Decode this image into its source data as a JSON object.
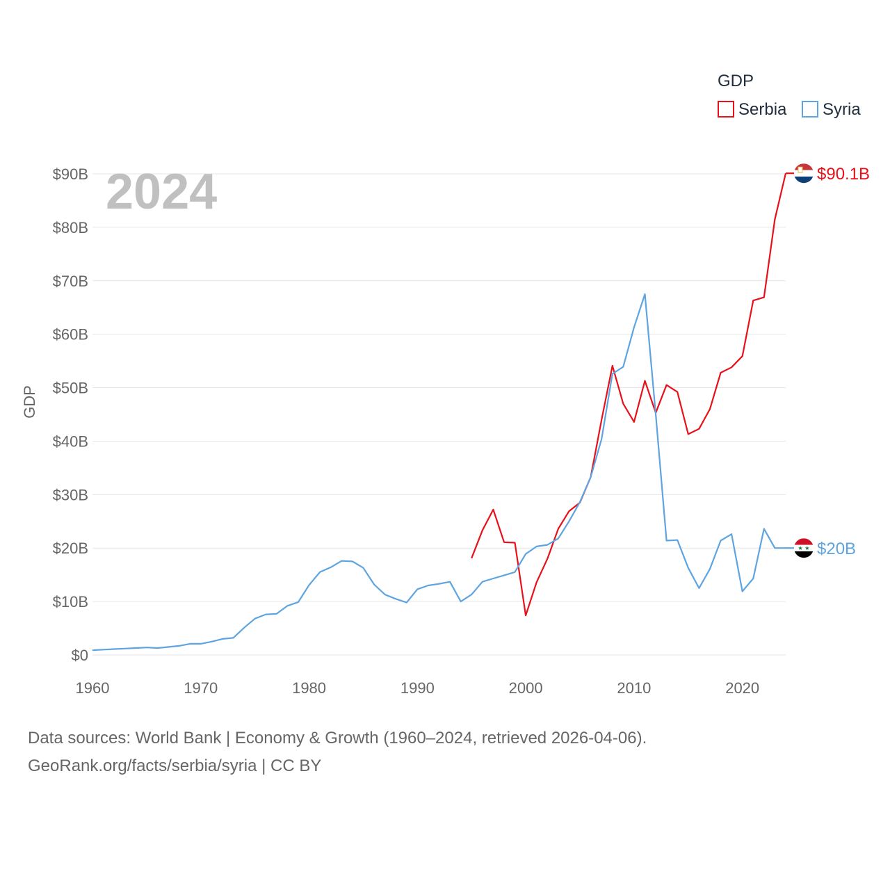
{
  "chart_data": {
    "type": "line",
    "title": "",
    "year_label": "2024",
    "xlabel": "",
    "ylabel": "GDP",
    "xlim": [
      1960,
      2024
    ],
    "ylim": [
      0,
      90
    ],
    "x_ticks": [
      1960,
      1970,
      1980,
      1990,
      2000,
      2010,
      2020
    ],
    "x_tick_labels": [
      "1960",
      "1970",
      "1980",
      "1990",
      "2000",
      "2010",
      "2020"
    ],
    "y_ticks": [
      0,
      10,
      20,
      30,
      40,
      50,
      60,
      70,
      80,
      90
    ],
    "y_tick_labels": [
      "$0",
      "$10B",
      "$20B",
      "$30B",
      "$40B",
      "$50B",
      "$60B",
      "$70B",
      "$80B",
      "$90B"
    ],
    "grid": true,
    "legend": {
      "title": "GDP",
      "position": "top-right"
    },
    "series": [
      {
        "name": "Serbia",
        "color": "#e8111a",
        "end_label": "$90.1B",
        "x": [
          1995,
          1996,
          1997,
          1998,
          1999,
          2000,
          2001,
          2002,
          2003,
          2004,
          2005,
          2006,
          2007,
          2008,
          2009,
          2010,
          2011,
          2012,
          2013,
          2014,
          2015,
          2016,
          2017,
          2018,
          2019,
          2020,
          2021,
          2022,
          2023,
          2024
        ],
        "values": [
          18.1,
          23.3,
          27.2,
          21.1,
          21.0,
          7.4,
          13.6,
          18.0,
          23.6,
          26.9,
          28.5,
          33.3,
          44.0,
          54.1,
          47.0,
          43.6,
          51.3,
          45.3,
          50.5,
          49.2,
          41.3,
          42.3,
          46.0,
          52.8,
          53.8,
          55.9,
          66.3,
          66.9,
          81.5,
          90.1
        ]
      },
      {
        "name": "Syria",
        "color": "#5ea4e0",
        "end_label": "$20B",
        "x": [
          1960,
          1961,
          1962,
          1963,
          1964,
          1965,
          1966,
          1967,
          1968,
          1969,
          1970,
          1971,
          1972,
          1973,
          1974,
          1975,
          1976,
          1977,
          1978,
          1979,
          1980,
          1981,
          1982,
          1983,
          1984,
          1985,
          1986,
          1987,
          1988,
          1989,
          1990,
          1991,
          1992,
          1993,
          1994,
          1995,
          1996,
          1997,
          1998,
          1999,
          2000,
          2001,
          2002,
          2003,
          2004,
          2005,
          2006,
          2007,
          2008,
          2009,
          2010,
          2011,
          2012,
          2013,
          2014,
          2015,
          2016,
          2017,
          2018,
          2019,
          2020,
          2021,
          2022,
          2023,
          2024
        ],
        "values": [
          0.9,
          1.0,
          1.1,
          1.2,
          1.3,
          1.4,
          1.3,
          1.5,
          1.7,
          2.1,
          2.1,
          2.5,
          3.0,
          3.2,
          5.1,
          6.8,
          7.6,
          7.7,
          9.2,
          9.9,
          13.1,
          15.5,
          16.4,
          17.6,
          17.5,
          16.3,
          13.2,
          11.3,
          10.5,
          9.8,
          12.3,
          13.0,
          13.3,
          13.7,
          10.0,
          11.3,
          13.7,
          14.3,
          14.9,
          15.5,
          18.9,
          20.3,
          20.6,
          21.8,
          25.0,
          28.6,
          33.3,
          40.4,
          52.6,
          53.9,
          61.3,
          67.5,
          45.0,
          21.4,
          21.5,
          16.3,
          12.5,
          16.1,
          21.4,
          22.6,
          11.9,
          14.3,
          23.6,
          20.0,
          20.0
        ]
      }
    ]
  },
  "footer": {
    "line1": "Data sources: World Bank | Economy & Growth (1960–2024, retrieved 2026-04-06).",
    "line2": "GeoRank.org/facts/serbia/syria | CC BY"
  }
}
